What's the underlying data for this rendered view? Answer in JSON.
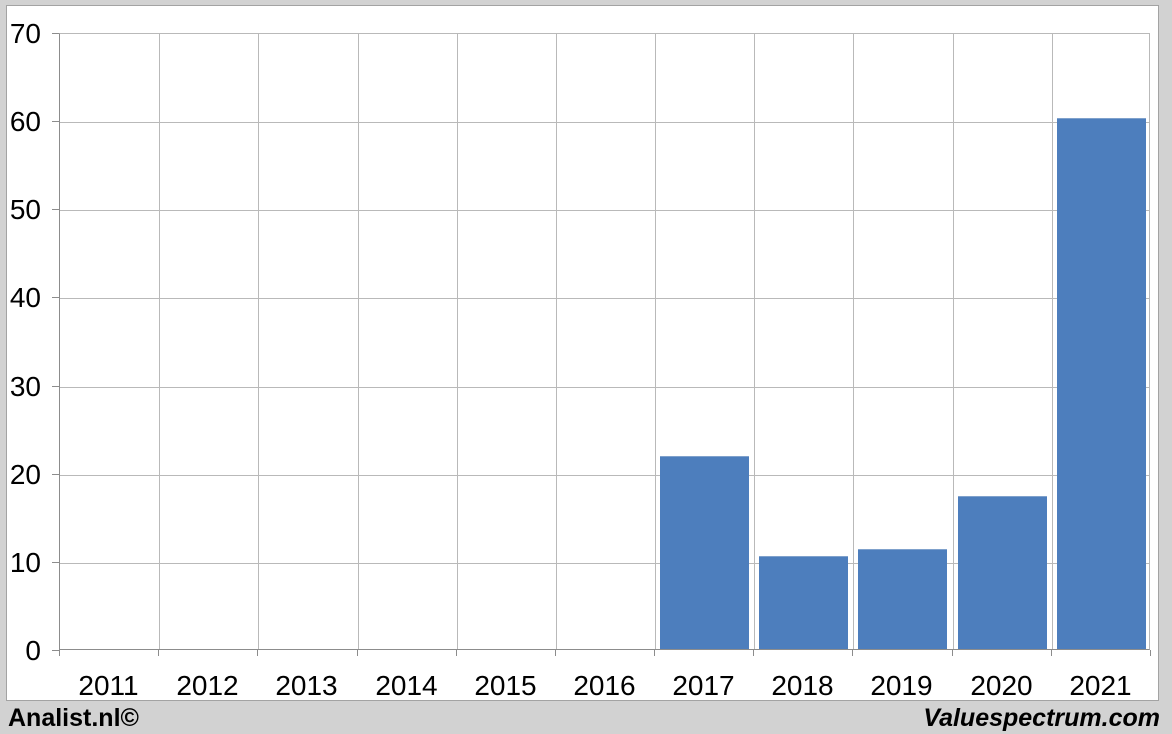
{
  "page": {
    "background_color": "#d2d2d2",
    "panel_background": "#ffffff",
    "panel_border_color": "#a3a3a3"
  },
  "footer": {
    "left_text": "Analist.nl©",
    "right_text": "Valuespectrum.com"
  },
  "chart_data": {
    "type": "bar",
    "title": "",
    "xlabel": "",
    "ylabel": "",
    "categories": [
      "2011",
      "2012",
      "2013",
      "2014",
      "2015",
      "2016",
      "2017",
      "2018",
      "2019",
      "2020",
      "2021"
    ],
    "values": [
      null,
      null,
      null,
      null,
      null,
      null,
      21.9,
      10.6,
      11.4,
      17.4,
      60.2
    ],
    "ylim": [
      0,
      70
    ],
    "yticks": [
      0,
      10,
      20,
      30,
      40,
      50,
      60,
      70
    ],
    "grid": true,
    "legend": null,
    "bar_color": "#4d7ebd",
    "gridline_color": "#b9b9b9",
    "axis_color": "#8c8c8c"
  }
}
